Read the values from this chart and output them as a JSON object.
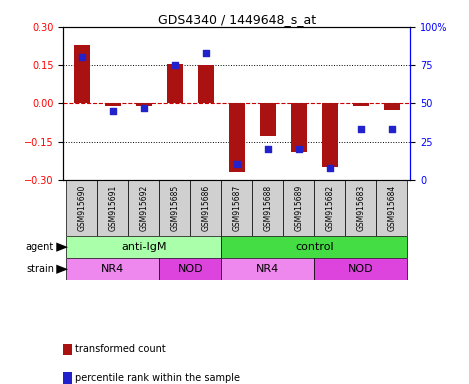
{
  "title": "GDS4340 / 1449648_s_at",
  "samples": [
    "GSM915690",
    "GSM915691",
    "GSM915692",
    "GSM915685",
    "GSM915686",
    "GSM915687",
    "GSM915688",
    "GSM915689",
    "GSM915682",
    "GSM915683",
    "GSM915684"
  ],
  "transformed_count": [
    0.23,
    -0.01,
    -0.01,
    0.155,
    0.15,
    -0.27,
    -0.13,
    -0.19,
    -0.25,
    -0.01,
    -0.025
  ],
  "percentile_rank": [
    80,
    45,
    47,
    75,
    83,
    10,
    20,
    20,
    8,
    33,
    33
  ],
  "ylim": [
    -0.3,
    0.3
  ],
  "yticks": [
    -0.3,
    -0.15,
    0,
    0.15,
    0.3
  ],
  "y2ticks": [
    0,
    25,
    50,
    75,
    100
  ],
  "bar_color": "#aa1111",
  "dot_color": "#2222cc",
  "hline_color": "#cc0000",
  "agent_groups": [
    {
      "label": "anti-IgM",
      "start": 0,
      "end": 5,
      "color": "#aaffaa"
    },
    {
      "label": "control",
      "start": 5,
      "end": 11,
      "color": "#44dd44"
    }
  ],
  "strain_groups": [
    {
      "label": "NR4",
      "start": 0,
      "end": 3,
      "color": "#ee88ee"
    },
    {
      "label": "NOD",
      "start": 3,
      "end": 5,
      "color": "#dd44dd"
    },
    {
      "label": "NR4",
      "start": 5,
      "end": 8,
      "color": "#ee88ee"
    },
    {
      "label": "NOD",
      "start": 8,
      "end": 11,
      "color": "#dd44dd"
    }
  ],
  "legend_items": [
    {
      "label": "transformed count",
      "color": "#aa1111"
    },
    {
      "label": "percentile rank within the sample",
      "color": "#2222cc"
    }
  ],
  "label_fontsize": 7,
  "sample_fontsize": 5.5,
  "bar_width": 0.5
}
